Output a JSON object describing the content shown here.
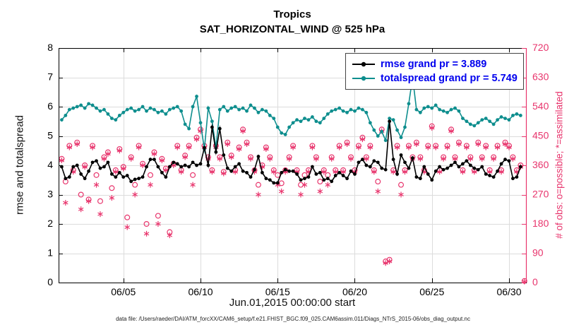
{
  "figure": {
    "footer": "data file: /Users/raeder/DAI/ATM_forcXX/CAM6_setup/f.e21.FHIST_BGC.f09_025.CAM6assim.011/Diags_NTrS_2015-06/obs_diag_output.nc"
  },
  "chart_data": {
    "type": "line",
    "title": "Tropics",
    "subtitle": "SAT_HORIZONTAL_WIND @ 525 hPa",
    "xlabel": "Jun.01,2015 00:00:00 start",
    "ylabel_left": "rmse and totalspread",
    "ylabel_right": "# of obs: o=possible; *=assimilated",
    "xlim": [
      0.8,
      31.1
    ],
    "ylim_left": [
      0,
      8
    ],
    "ylim_right": [
      0,
      720
    ],
    "right_to_left_scale": 90,
    "grid": true,
    "xticks": {
      "values": [
        5,
        10,
        15,
        20,
        25,
        30
      ],
      "labels": [
        "06/05",
        "06/10",
        "06/15",
        "06/20",
        "06/25",
        "06/30"
      ]
    },
    "yticks_left": [
      0,
      1,
      2,
      3,
      4,
      5,
      6,
      7,
      8
    ],
    "yticks_right": [
      0,
      90,
      180,
      270,
      360,
      450,
      540,
      630,
      720
    ],
    "x_time": {
      "start": 1.0,
      "step": 0.25,
      "count": 120
    },
    "colors": {
      "rmse": "#000000",
      "totalspread": "#0e8e8e",
      "obs": "#e8356d",
      "legend_text": "#0000ee",
      "grid": "#dcdcdc"
    },
    "legend": {
      "position": "top-right",
      "entries": [
        {
          "label": "rmse grand pr = 3.889",
          "series": "rmse"
        },
        {
          "label": "totalspread grand pr = 5.749",
          "series": "totalspread"
        }
      ]
    },
    "series": [
      {
        "name": "rmse",
        "type": "line",
        "marker": "dot",
        "axis": "left",
        "values": [
          3.95,
          3.55,
          3.6,
          3.95,
          4.0,
          3.7,
          3.55,
          3.8,
          4.1,
          4.15,
          3.9,
          3.95,
          4.1,
          3.7,
          3.6,
          3.75,
          3.6,
          3.65,
          3.45,
          3.52,
          3.55,
          3.6,
          3.95,
          4.2,
          4.2,
          3.95,
          3.75,
          3.6,
          3.95,
          4.1,
          4.05,
          3.95,
          4.0,
          3.95,
          4.1,
          4.0,
          4.05,
          4.6,
          4.0,
          5.3,
          4.45,
          5.25,
          4.35,
          3.9,
          3.8,
          3.95,
          4.05,
          3.8,
          3.75,
          3.6,
          3.85,
          4.3,
          3.75,
          3.55,
          3.5,
          3.4,
          3.4,
          3.75,
          3.85,
          3.8,
          3.8,
          3.7,
          3.5,
          3.55,
          3.6,
          3.95,
          3.7,
          3.75,
          3.5,
          3.55,
          3.45,
          3.65,
          3.75,
          3.65,
          3.55,
          3.8,
          3.7,
          4.1,
          4.2,
          4.0,
          3.95,
          4.15,
          4.1,
          3.9,
          3.85,
          5.5,
          4.2,
          3.7,
          4.35,
          4.1,
          3.9,
          4.25,
          3.6,
          3.55,
          3.95,
          3.7,
          3.5,
          3.8,
          3.95,
          3.85,
          3.9,
          4.0,
          4.1,
          3.95,
          4.05,
          4.15,
          4.0,
          3.9,
          3.85,
          3.95,
          3.7,
          3.65,
          3.6,
          3.8,
          4.05,
          4.2,
          4.15,
          3.55,
          3.6,
          3.95
        ]
      },
      {
        "name": "totalspread",
        "type": "line",
        "marker": "dot",
        "axis": "left",
        "values": [
          5.55,
          5.7,
          5.9,
          5.95,
          6.0,
          6.05,
          5.95,
          6.1,
          6.05,
          5.95,
          5.85,
          5.9,
          5.75,
          5.6,
          5.55,
          5.7,
          5.8,
          5.9,
          5.95,
          5.85,
          5.9,
          6.0,
          5.85,
          5.95,
          5.9,
          5.8,
          5.85,
          5.75,
          5.9,
          5.95,
          6.0,
          5.85,
          5.4,
          5.25,
          6.0,
          6.35,
          5.45,
          4.55,
          5.95,
          5.5,
          4.6,
          5.9,
          6.0,
          5.85,
          5.95,
          6.0,
          5.9,
          5.95,
          5.85,
          6.05,
          5.95,
          5.8,
          5.9,
          5.85,
          5.7,
          5.6,
          5.3,
          5.1,
          5.05,
          5.3,
          5.45,
          5.55,
          5.5,
          5.6,
          5.55,
          5.65,
          5.5,
          5.45,
          5.6,
          5.75,
          5.85,
          5.9,
          5.95,
          5.85,
          5.8,
          5.9,
          5.85,
          5.95,
          5.9,
          5.8,
          5.45,
          5.2,
          5.0,
          5.15,
          4.85,
          5.6,
          5.55,
          5.2,
          4.95,
          5.3,
          6.1,
          7.0,
          5.9,
          5.8,
          5.95,
          6.0,
          5.95,
          6.05,
          5.9,
          5.85,
          5.8,
          5.9,
          5.95,
          5.85,
          5.6,
          5.5,
          5.4,
          5.35,
          5.45,
          5.55,
          5.6,
          5.5,
          5.4,
          5.55,
          5.65,
          5.6,
          5.55,
          5.7,
          5.75,
          5.7
        ]
      },
      {
        "name": "possible",
        "type": "scatter",
        "marker": "circle",
        "axis": "right",
        "values": [
          380,
          310,
          420,
          345,
          430,
          270,
          360,
          255,
          420,
          330,
          250,
          385,
          400,
          290,
          345,
          410,
          355,
          200,
          385,
          300,
          420,
          365,
          180,
          330,
          400,
          205,
          380,
          350,
          155,
          365,
          420,
          345,
          390,
          420,
          330,
          445,
          470,
          420,
          385,
          345,
          420,
          385,
          340,
          430,
          390,
          345,
          415,
          470,
          430,
          385,
          345,
          300,
          360,
          415,
          385,
          345,
          330,
          305,
          345,
          385,
          420,
          345,
          300,
          330,
          345,
          420,
          385,
          310,
          345,
          330,
          385,
          345,
          420,
          345,
          430,
          385,
          345,
          420,
          445,
          385,
          420,
          345,
          310,
          470,
          65,
          70,
          345,
          420,
          300,
          345,
          420,
          385,
          430,
          385,
          345,
          420,
          480,
          420,
          345,
          385,
          420,
          470,
          385,
          430,
          345,
          420,
          385,
          345,
          430,
          385,
          420,
          345,
          385,
          420,
          345,
          430,
          420,
          385,
          345,
          360
        ]
      },
      {
        "name": "assimilated",
        "type": "scatter",
        "marker": "asterisk",
        "axis": "right",
        "values": [
          375,
          245,
          415,
          340,
          425,
          225,
          355,
          250,
          415,
          300,
          210,
          380,
          395,
          260,
          340,
          405,
          350,
          170,
          380,
          270,
          415,
          360,
          150,
          300,
          395,
          180,
          375,
          345,
          145,
          360,
          415,
          340,
          385,
          415,
          300,
          440,
          465,
          415,
          380,
          340,
          415,
          380,
          335,
          425,
          385,
          340,
          410,
          465,
          425,
          380,
          340,
          270,
          355,
          410,
          380,
          340,
          300,
          280,
          340,
          380,
          415,
          340,
          270,
          300,
          340,
          415,
          380,
          280,
          340,
          300,
          380,
          340,
          415,
          340,
          425,
          380,
          340,
          415,
          440,
          380,
          415,
          340,
          280,
          465,
          60,
          65,
          340,
          415,
          270,
          340,
          415,
          380,
          425,
          380,
          340,
          415,
          475,
          415,
          340,
          380,
          415,
          465,
          380,
          425,
          340,
          415,
          380,
          340,
          425,
          380,
          415,
          340,
          380,
          415,
          340,
          425,
          415,
          380,
          340,
          355
        ]
      }
    ],
    "extra_obs": {
      "x": 31.0,
      "possible": 5,
      "assimilated": 3
    }
  }
}
